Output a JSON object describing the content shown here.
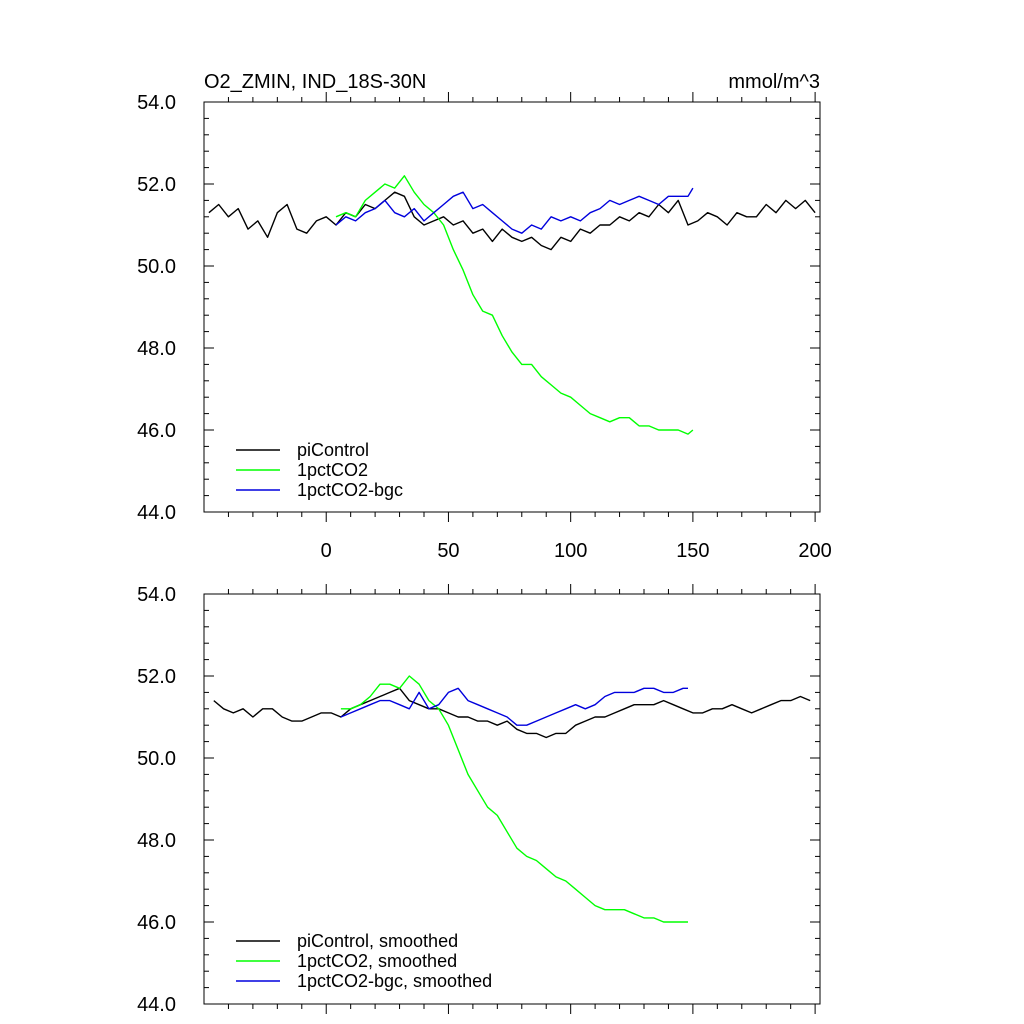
{
  "chart_data": [
    {
      "type": "line",
      "title": "O2_ZMIN, IND_18S-30N",
      "units": "mmol/m^3",
      "xlim": [
        -50,
        202
      ],
      "ylim": [
        44,
        54
      ],
      "yticks": [
        "44.0",
        "46.0",
        "48.0",
        "50.0",
        "52.0",
        "54.0"
      ],
      "xticks": [
        "0",
        "50",
        "100",
        "150",
        "200"
      ],
      "legend_position": "bottom-left",
      "series": [
        {
          "name": "piControl",
          "color": "#000000",
          "x": [
            -48,
            -44,
            -40,
            -36,
            -32,
            -28,
            -24,
            -20,
            -16,
            -12,
            -8,
            -4,
            0,
            4,
            8,
            12,
            16,
            20,
            24,
            28,
            32,
            36,
            40,
            44,
            48,
            52,
            56,
            60,
            64,
            68,
            72,
            76,
            80,
            84,
            88,
            92,
            96,
            100,
            104,
            108,
            112,
            116,
            120,
            124,
            128,
            132,
            136,
            140,
            144,
            148,
            152,
            156,
            160,
            164,
            168,
            172,
            176,
            180,
            184,
            188,
            192,
            196,
            200
          ],
          "y": [
            51.3,
            51.5,
            51.2,
            51.4,
            50.9,
            51.1,
            50.7,
            51.3,
            51.5,
            50.9,
            50.8,
            51.1,
            51.2,
            51.0,
            51.3,
            51.2,
            51.5,
            51.4,
            51.6,
            51.8,
            51.7,
            51.2,
            51.0,
            51.1,
            51.2,
            51.0,
            51.1,
            50.8,
            50.9,
            50.6,
            50.9,
            50.7,
            50.6,
            50.7,
            50.5,
            50.4,
            50.7,
            50.6,
            50.9,
            50.8,
            51.0,
            51.0,
            51.2,
            51.1,
            51.3,
            51.2,
            51.5,
            51.3,
            51.6,
            51.0,
            51.1,
            51.3,
            51.2,
            51.0,
            51.3,
            51.2,
            51.2,
            51.5,
            51.3,
            51.6,
            51.4,
            51.6,
            51.3
          ]
        },
        {
          "name": "1pctCO2",
          "color": "#00ff00",
          "x": [
            4,
            8,
            12,
            16,
            20,
            24,
            28,
            32,
            36,
            40,
            44,
            48,
            52,
            56,
            60,
            64,
            68,
            72,
            76,
            80,
            84,
            88,
            92,
            96,
            100,
            104,
            108,
            112,
            116,
            120,
            124,
            128,
            132,
            136,
            140,
            144,
            148,
            150
          ],
          "y": [
            51.2,
            51.3,
            51.2,
            51.6,
            51.8,
            52.0,
            51.9,
            52.2,
            51.8,
            51.5,
            51.3,
            51.0,
            50.4,
            49.9,
            49.3,
            48.9,
            48.8,
            48.3,
            47.9,
            47.6,
            47.6,
            47.3,
            47.1,
            46.9,
            46.8,
            46.6,
            46.4,
            46.3,
            46.2,
            46.3,
            46.3,
            46.1,
            46.1,
            46.0,
            46.0,
            46.0,
            45.9,
            46.0
          ]
        },
        {
          "name": "1pctCO2-bgc",
          "color": "#0000dd",
          "x": [
            4,
            8,
            12,
            16,
            20,
            24,
            28,
            32,
            36,
            40,
            44,
            48,
            52,
            56,
            60,
            64,
            68,
            72,
            76,
            80,
            84,
            88,
            92,
            96,
            100,
            104,
            108,
            112,
            116,
            120,
            124,
            128,
            132,
            136,
            140,
            144,
            148,
            150
          ],
          "y": [
            51.0,
            51.2,
            51.1,
            51.3,
            51.4,
            51.6,
            51.3,
            51.2,
            51.4,
            51.1,
            51.3,
            51.5,
            51.7,
            51.8,
            51.4,
            51.5,
            51.3,
            51.1,
            50.9,
            50.8,
            51.0,
            50.9,
            51.2,
            51.1,
            51.2,
            51.1,
            51.3,
            51.4,
            51.6,
            51.5,
            51.6,
            51.7,
            51.6,
            51.5,
            51.7,
            51.7,
            51.7,
            51.9
          ]
        }
      ]
    },
    {
      "type": "line",
      "xlim": [
        -50,
        202
      ],
      "ylim": [
        44,
        54
      ],
      "yticks": [
        "44.0",
        "46.0",
        "48.0",
        "50.0",
        "52.0",
        "54.0"
      ],
      "legend_position": "bottom-left",
      "series": [
        {
          "name": "piControl, smoothed",
          "color": "#000000",
          "x": [
            -46,
            -42,
            -38,
            -34,
            -30,
            -26,
            -22,
            -18,
            -14,
            -10,
            -6,
            -2,
            2,
            6,
            10,
            14,
            18,
            22,
            26,
            30,
            34,
            38,
            42,
            46,
            50,
            54,
            58,
            62,
            66,
            70,
            74,
            78,
            82,
            86,
            90,
            94,
            98,
            102,
            106,
            110,
            114,
            118,
            122,
            126,
            130,
            134,
            138,
            142,
            146,
            150,
            154,
            158,
            162,
            166,
            170,
            174,
            178,
            182,
            186,
            190,
            194,
            198
          ],
          "y": [
            51.4,
            51.2,
            51.1,
            51.2,
            51.0,
            51.2,
            51.2,
            51.0,
            50.9,
            50.9,
            51.0,
            51.1,
            51.1,
            51.0,
            51.2,
            51.3,
            51.4,
            51.5,
            51.6,
            51.7,
            51.4,
            51.3,
            51.2,
            51.2,
            51.1,
            51.0,
            51.0,
            50.9,
            50.9,
            50.8,
            50.9,
            50.7,
            50.6,
            50.6,
            50.5,
            50.6,
            50.6,
            50.8,
            50.9,
            51.0,
            51.0,
            51.1,
            51.2,
            51.3,
            51.3,
            51.3,
            51.4,
            51.3,
            51.2,
            51.1,
            51.1,
            51.2,
            51.2,
            51.3,
            51.2,
            51.1,
            51.2,
            51.3,
            51.4,
            51.4,
            51.5,
            51.4
          ]
        },
        {
          "name": "1pctCO2, smoothed",
          "color": "#00ff00",
          "x": [
            6,
            10,
            14,
            18,
            22,
            26,
            30,
            34,
            38,
            42,
            46,
            50,
            54,
            58,
            62,
            66,
            70,
            74,
            78,
            82,
            86,
            90,
            94,
            98,
            102,
            106,
            110,
            114,
            118,
            122,
            126,
            130,
            134,
            138,
            142,
            146,
            148
          ],
          "y": [
            51.2,
            51.2,
            51.3,
            51.5,
            51.8,
            51.8,
            51.7,
            52.0,
            51.8,
            51.4,
            51.2,
            50.8,
            50.2,
            49.6,
            49.2,
            48.8,
            48.6,
            48.2,
            47.8,
            47.6,
            47.5,
            47.3,
            47.1,
            47.0,
            46.8,
            46.6,
            46.4,
            46.3,
            46.3,
            46.3,
            46.2,
            46.1,
            46.1,
            46.0,
            46.0,
            46.0,
            46.0
          ]
        },
        {
          "name": "1pctCO2-bgc, smoothed",
          "color": "#0000dd",
          "x": [
            6,
            10,
            14,
            18,
            22,
            26,
            30,
            34,
            38,
            42,
            46,
            50,
            54,
            58,
            62,
            66,
            70,
            74,
            78,
            82,
            86,
            90,
            94,
            98,
            102,
            106,
            110,
            114,
            118,
            122,
            126,
            130,
            134,
            138,
            142,
            146,
            148
          ],
          "y": [
            51.0,
            51.1,
            51.2,
            51.3,
            51.4,
            51.4,
            51.3,
            51.2,
            51.6,
            51.2,
            51.3,
            51.6,
            51.7,
            51.4,
            51.3,
            51.2,
            51.1,
            51.0,
            50.8,
            50.8,
            50.9,
            51.0,
            51.1,
            51.2,
            51.3,
            51.2,
            51.3,
            51.5,
            51.6,
            51.6,
            51.6,
            51.7,
            51.7,
            51.6,
            51.6,
            51.7,
            51.7
          ]
        }
      ]
    }
  ]
}
